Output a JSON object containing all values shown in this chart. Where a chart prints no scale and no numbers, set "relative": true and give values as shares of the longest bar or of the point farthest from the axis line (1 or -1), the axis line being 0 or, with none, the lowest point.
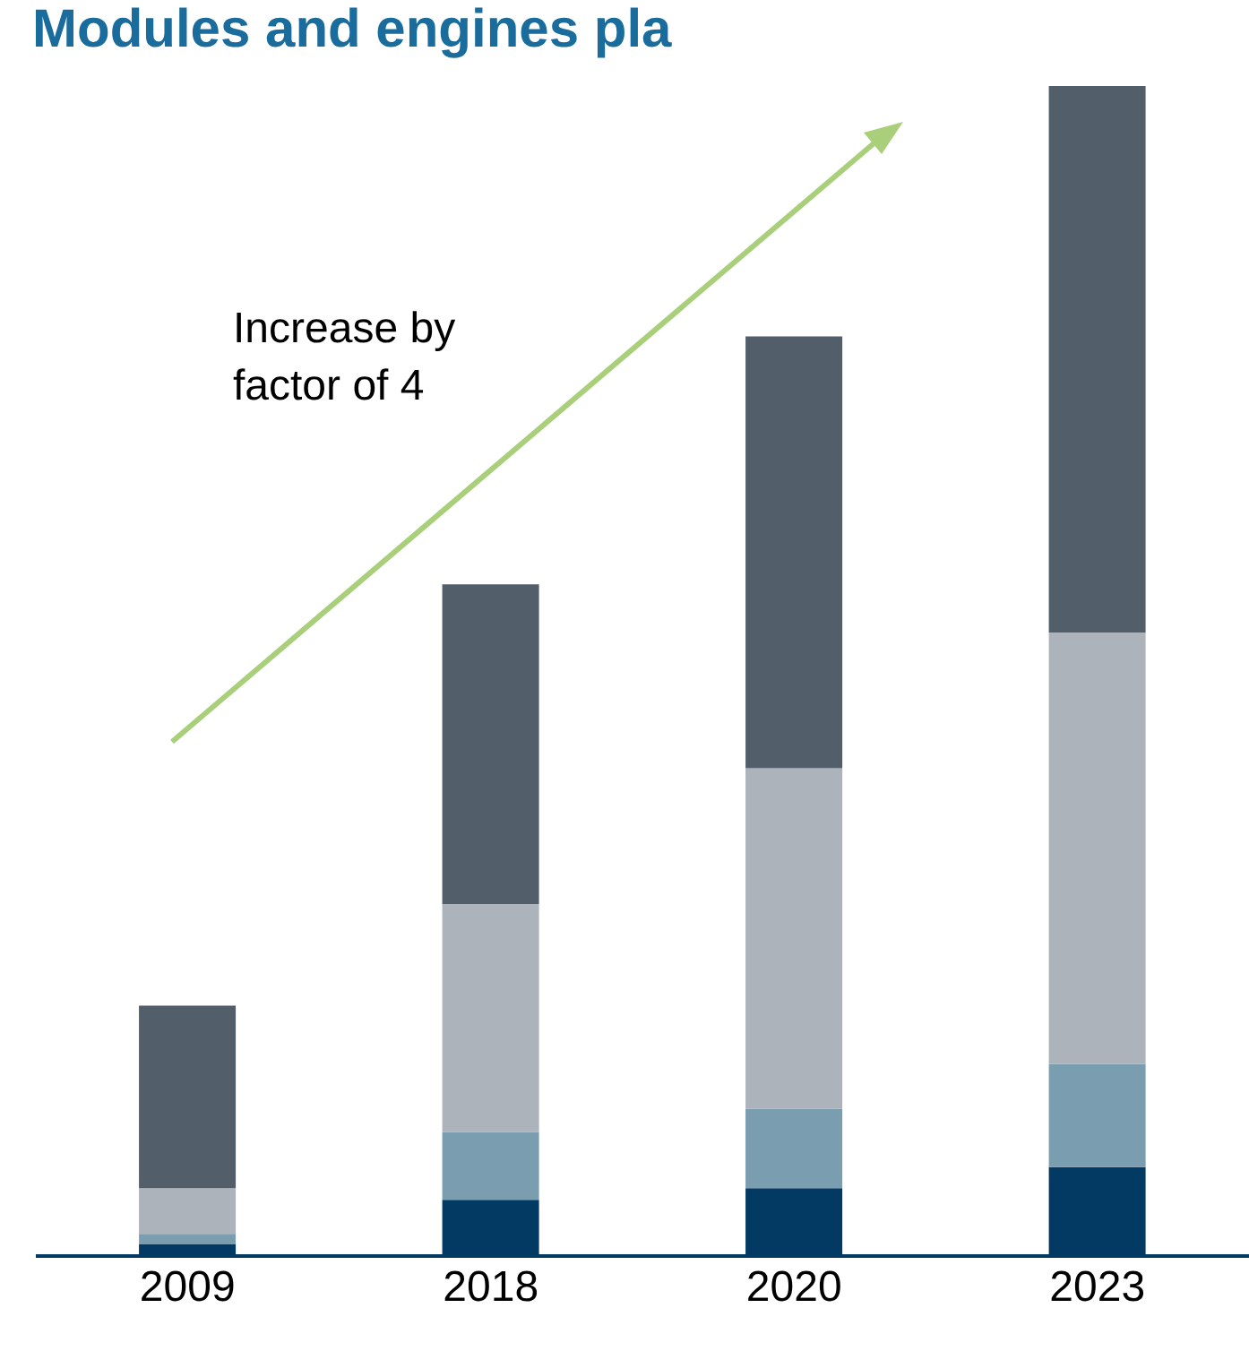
{
  "chart_data": {
    "type": "bar",
    "title": "Modules and engines pla",
    "relative": true,
    "stacked": true,
    "categories": [
      "2009",
      "2018",
      "2020",
      "2023"
    ],
    "series": [
      {
        "color": "#033a63",
        "values": [
          0.01,
          0.048,
          0.058,
          0.076
        ]
      },
      {
        "color": "#7a9db0",
        "values": [
          0.009,
          0.058,
          0.068,
          0.088
        ]
      },
      {
        "color": "#adb3ba",
        "values": [
          0.039,
          0.195,
          0.291,
          0.369
        ]
      },
      {
        "color": "#525e69",
        "values": [
          0.156,
          0.273,
          0.369,
          0.467
        ]
      }
    ],
    "annotations": [
      "Increase by\nfactor of 4"
    ]
  }
}
